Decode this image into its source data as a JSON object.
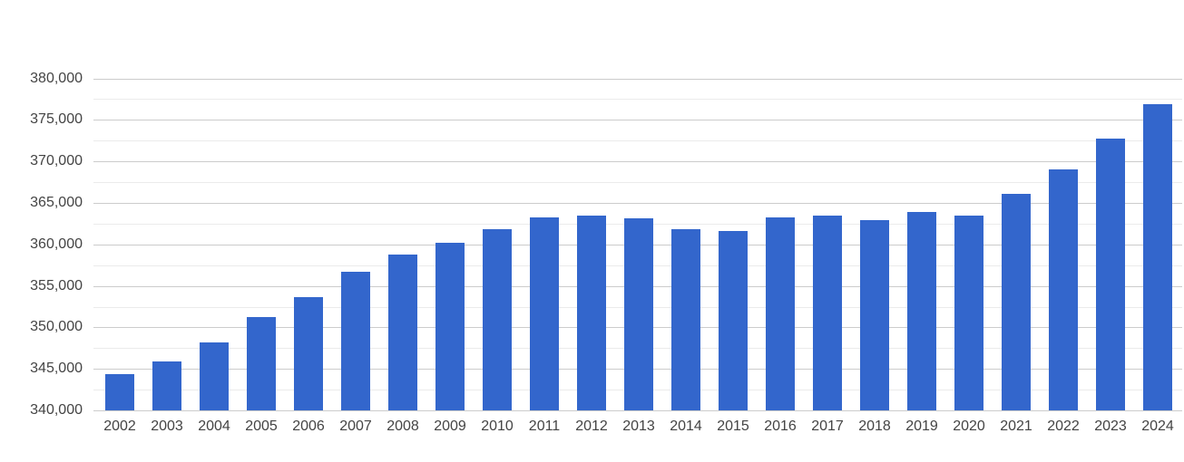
{
  "chart_data": {
    "type": "bar",
    "title": "",
    "xlabel": "",
    "ylabel": "",
    "legend_position": "none",
    "grid": true,
    "categories": [
      "2002",
      "2003",
      "2004",
      "2005",
      "2006",
      "2007",
      "2008",
      "2009",
      "2010",
      "2011",
      "2012",
      "2013",
      "2014",
      "2015",
      "2016",
      "2017",
      "2018",
      "2019",
      "2020",
      "2021",
      "2022",
      "2023",
      "2024"
    ],
    "values": [
      344400,
      345900,
      348200,
      351200,
      353700,
      356700,
      358800,
      360200,
      361800,
      363300,
      363500,
      363100,
      361800,
      361600,
      363200,
      363500,
      362900,
      363900,
      363500,
      366100,
      369000,
      372700,
      376900
    ],
    "ylim": [
      340000,
      380000
    ],
    "y_major_step": 5000,
    "y_minor_step": 2500,
    "y_tick_labels": [
      "340,000",
      "345,000",
      "350,000",
      "355,000",
      "360,000",
      "365,000",
      "370,000",
      "375,000",
      "380,000"
    ],
    "bar_color": "#3366cc",
    "major_gridline_color": "#cccccc",
    "minor_gridline_color": "#ebebeb",
    "axis_label_color": "#444444",
    "background_color": "#ffffff"
  }
}
